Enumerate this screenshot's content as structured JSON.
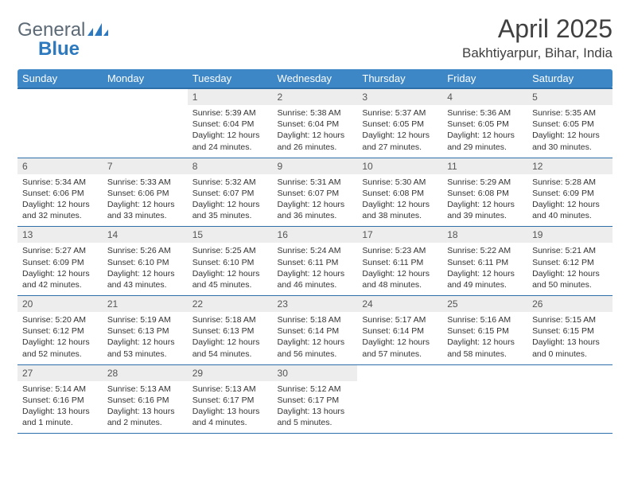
{
  "logo": {
    "text1": "General",
    "text2": "Blue",
    "color_gray": "#5d6a76",
    "color_blue": "#2d79bf"
  },
  "title": "April 2025",
  "location": "Bakhtiyarpur, Bihar, India",
  "header_bg": "#3d87c7",
  "header_border": "#2d6fa8",
  "daynum_bg": "#ededed",
  "weekdays": [
    "Sunday",
    "Monday",
    "Tuesday",
    "Wednesday",
    "Thursday",
    "Friday",
    "Saturday"
  ],
  "weeks": [
    [
      {
        "n": "",
        "lines": []
      },
      {
        "n": "",
        "lines": []
      },
      {
        "n": "1",
        "lines": [
          "Sunrise: 5:39 AM",
          "Sunset: 6:04 PM",
          "Daylight: 12 hours and 24 minutes."
        ]
      },
      {
        "n": "2",
        "lines": [
          "Sunrise: 5:38 AM",
          "Sunset: 6:04 PM",
          "Daylight: 12 hours and 26 minutes."
        ]
      },
      {
        "n": "3",
        "lines": [
          "Sunrise: 5:37 AM",
          "Sunset: 6:05 PM",
          "Daylight: 12 hours and 27 minutes."
        ]
      },
      {
        "n": "4",
        "lines": [
          "Sunrise: 5:36 AM",
          "Sunset: 6:05 PM",
          "Daylight: 12 hours and 29 minutes."
        ]
      },
      {
        "n": "5",
        "lines": [
          "Sunrise: 5:35 AM",
          "Sunset: 6:05 PM",
          "Daylight: 12 hours and 30 minutes."
        ]
      }
    ],
    [
      {
        "n": "6",
        "lines": [
          "Sunrise: 5:34 AM",
          "Sunset: 6:06 PM",
          "Daylight: 12 hours and 32 minutes."
        ]
      },
      {
        "n": "7",
        "lines": [
          "Sunrise: 5:33 AM",
          "Sunset: 6:06 PM",
          "Daylight: 12 hours and 33 minutes."
        ]
      },
      {
        "n": "8",
        "lines": [
          "Sunrise: 5:32 AM",
          "Sunset: 6:07 PM",
          "Daylight: 12 hours and 35 minutes."
        ]
      },
      {
        "n": "9",
        "lines": [
          "Sunrise: 5:31 AM",
          "Sunset: 6:07 PM",
          "Daylight: 12 hours and 36 minutes."
        ]
      },
      {
        "n": "10",
        "lines": [
          "Sunrise: 5:30 AM",
          "Sunset: 6:08 PM",
          "Daylight: 12 hours and 38 minutes."
        ]
      },
      {
        "n": "11",
        "lines": [
          "Sunrise: 5:29 AM",
          "Sunset: 6:08 PM",
          "Daylight: 12 hours and 39 minutes."
        ]
      },
      {
        "n": "12",
        "lines": [
          "Sunrise: 5:28 AM",
          "Sunset: 6:09 PM",
          "Daylight: 12 hours and 40 minutes."
        ]
      }
    ],
    [
      {
        "n": "13",
        "lines": [
          "Sunrise: 5:27 AM",
          "Sunset: 6:09 PM",
          "Daylight: 12 hours and 42 minutes."
        ]
      },
      {
        "n": "14",
        "lines": [
          "Sunrise: 5:26 AM",
          "Sunset: 6:10 PM",
          "Daylight: 12 hours and 43 minutes."
        ]
      },
      {
        "n": "15",
        "lines": [
          "Sunrise: 5:25 AM",
          "Sunset: 6:10 PM",
          "Daylight: 12 hours and 45 minutes."
        ]
      },
      {
        "n": "16",
        "lines": [
          "Sunrise: 5:24 AM",
          "Sunset: 6:11 PM",
          "Daylight: 12 hours and 46 minutes."
        ]
      },
      {
        "n": "17",
        "lines": [
          "Sunrise: 5:23 AM",
          "Sunset: 6:11 PM",
          "Daylight: 12 hours and 48 minutes."
        ]
      },
      {
        "n": "18",
        "lines": [
          "Sunrise: 5:22 AM",
          "Sunset: 6:11 PM",
          "Daylight: 12 hours and 49 minutes."
        ]
      },
      {
        "n": "19",
        "lines": [
          "Sunrise: 5:21 AM",
          "Sunset: 6:12 PM",
          "Daylight: 12 hours and 50 minutes."
        ]
      }
    ],
    [
      {
        "n": "20",
        "lines": [
          "Sunrise: 5:20 AM",
          "Sunset: 6:12 PM",
          "Daylight: 12 hours and 52 minutes."
        ]
      },
      {
        "n": "21",
        "lines": [
          "Sunrise: 5:19 AM",
          "Sunset: 6:13 PM",
          "Daylight: 12 hours and 53 minutes."
        ]
      },
      {
        "n": "22",
        "lines": [
          "Sunrise: 5:18 AM",
          "Sunset: 6:13 PM",
          "Daylight: 12 hours and 54 minutes."
        ]
      },
      {
        "n": "23",
        "lines": [
          "Sunrise: 5:18 AM",
          "Sunset: 6:14 PM",
          "Daylight: 12 hours and 56 minutes."
        ]
      },
      {
        "n": "24",
        "lines": [
          "Sunrise: 5:17 AM",
          "Sunset: 6:14 PM",
          "Daylight: 12 hours and 57 minutes."
        ]
      },
      {
        "n": "25",
        "lines": [
          "Sunrise: 5:16 AM",
          "Sunset: 6:15 PM",
          "Daylight: 12 hours and 58 minutes."
        ]
      },
      {
        "n": "26",
        "lines": [
          "Sunrise: 5:15 AM",
          "Sunset: 6:15 PM",
          "Daylight: 13 hours and 0 minutes."
        ]
      }
    ],
    [
      {
        "n": "27",
        "lines": [
          "Sunrise: 5:14 AM",
          "Sunset: 6:16 PM",
          "Daylight: 13 hours and 1 minute."
        ]
      },
      {
        "n": "28",
        "lines": [
          "Sunrise: 5:13 AM",
          "Sunset: 6:16 PM",
          "Daylight: 13 hours and 2 minutes."
        ]
      },
      {
        "n": "29",
        "lines": [
          "Sunrise: 5:13 AM",
          "Sunset: 6:17 PM",
          "Daylight: 13 hours and 4 minutes."
        ]
      },
      {
        "n": "30",
        "lines": [
          "Sunrise: 5:12 AM",
          "Sunset: 6:17 PM",
          "Daylight: 13 hours and 5 minutes."
        ]
      },
      {
        "n": "",
        "lines": []
      },
      {
        "n": "",
        "lines": []
      },
      {
        "n": "",
        "lines": []
      }
    ]
  ]
}
